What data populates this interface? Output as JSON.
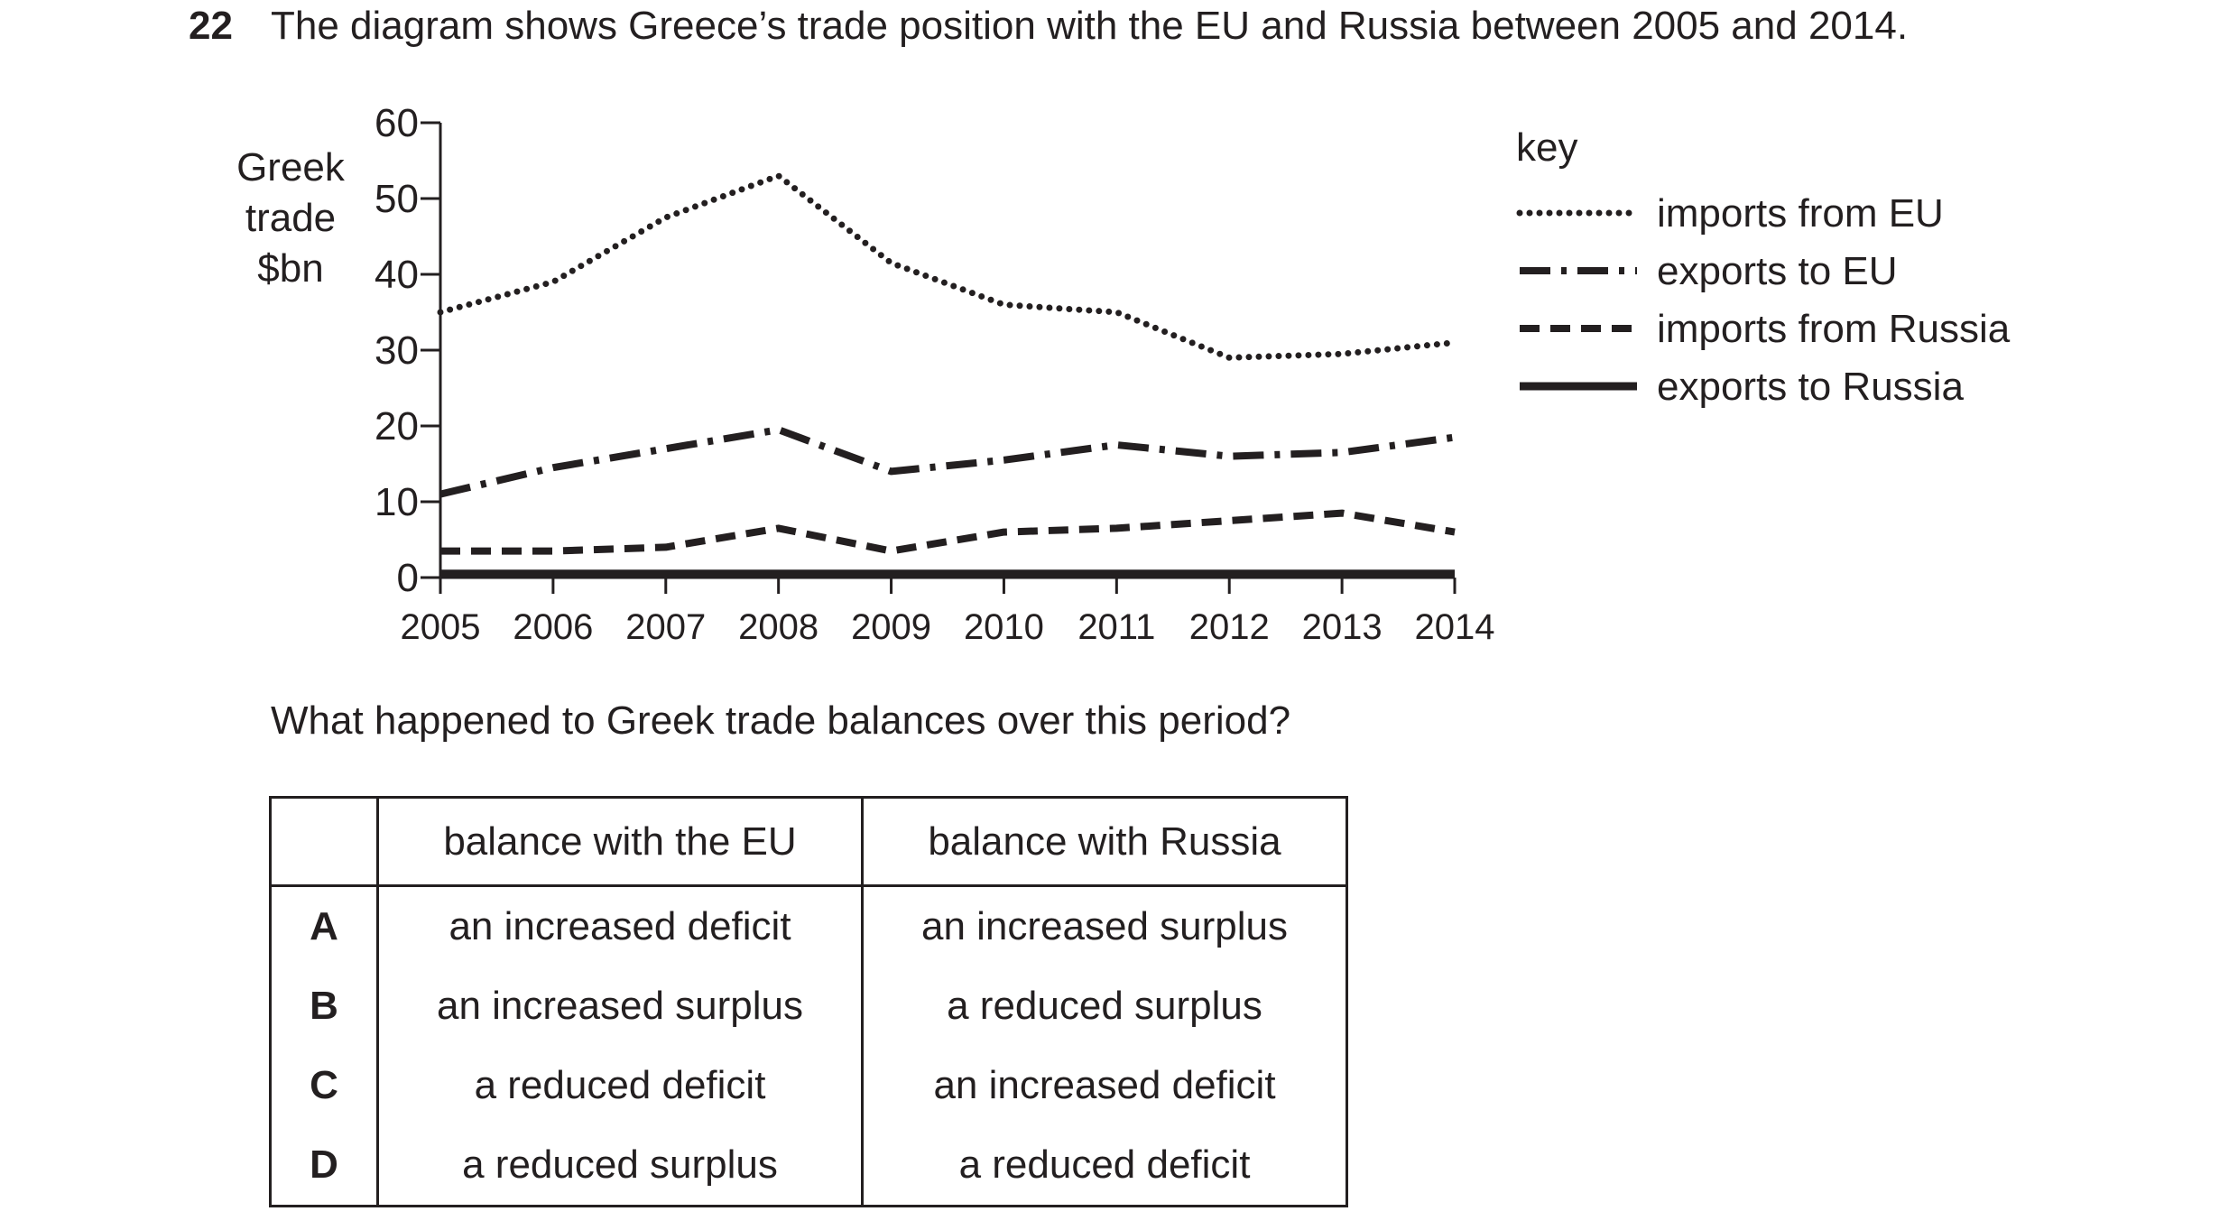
{
  "question": {
    "number": "22",
    "text": "The diagram shows Greece’s trade position with the EU and Russia between 2005 and 2014.",
    "prompt": "What happened to Greek trade balances over this period?"
  },
  "chart_data": {
    "type": "line",
    "title": "",
    "ylabel_lines": [
      "Greek",
      "trade",
      "$bn"
    ],
    "xlabel": "",
    "ylim": [
      0,
      60
    ],
    "yticks": [
      "0",
      "10",
      "20",
      "30",
      "40",
      "50",
      "60"
    ],
    "ytick_values": [
      0,
      10,
      20,
      30,
      40,
      50,
      60
    ],
    "categories": [
      "2005",
      "2006",
      "2007",
      "2008",
      "2009",
      "2010",
      "2011",
      "2012",
      "2013",
      "2014"
    ],
    "legend_title": "key",
    "legend_position": "right",
    "series": [
      {
        "name": "imports from EU",
        "style": "dotted",
        "values": [
          35,
          39,
          47.5,
          53,
          41.5,
          36,
          35,
          29,
          29.5,
          31
        ]
      },
      {
        "name": "exports to EU",
        "style": "dash-dot",
        "values": [
          11,
          14.5,
          17,
          19.5,
          14,
          15.5,
          17.5,
          16,
          16.5,
          18.5
        ]
      },
      {
        "name": "imports from Russia",
        "style": "dashed",
        "values": [
          3.5,
          3.5,
          4,
          6.5,
          3.5,
          6,
          6.5,
          7.5,
          8.5,
          6
        ]
      },
      {
        "name": "exports to Russia",
        "style": "solid",
        "values": [
          0.5,
          0.5,
          0.5,
          0.5,
          0.5,
          0.5,
          0.5,
          0.5,
          0.5,
          0.5
        ]
      }
    ]
  },
  "options_table": {
    "headers": [
      "",
      "balance with the EU",
      "balance with Russia"
    ],
    "rows": [
      {
        "letter": "A",
        "eu": "an increased deficit",
        "russia": "an increased surplus"
      },
      {
        "letter": "B",
        "eu": "an increased surplus",
        "russia": "a reduced surplus"
      },
      {
        "letter": "C",
        "eu": "a reduced deficit",
        "russia": "an increased deficit"
      },
      {
        "letter": "D",
        "eu": "a reduced surplus",
        "russia": "a reduced deficit"
      }
    ]
  }
}
